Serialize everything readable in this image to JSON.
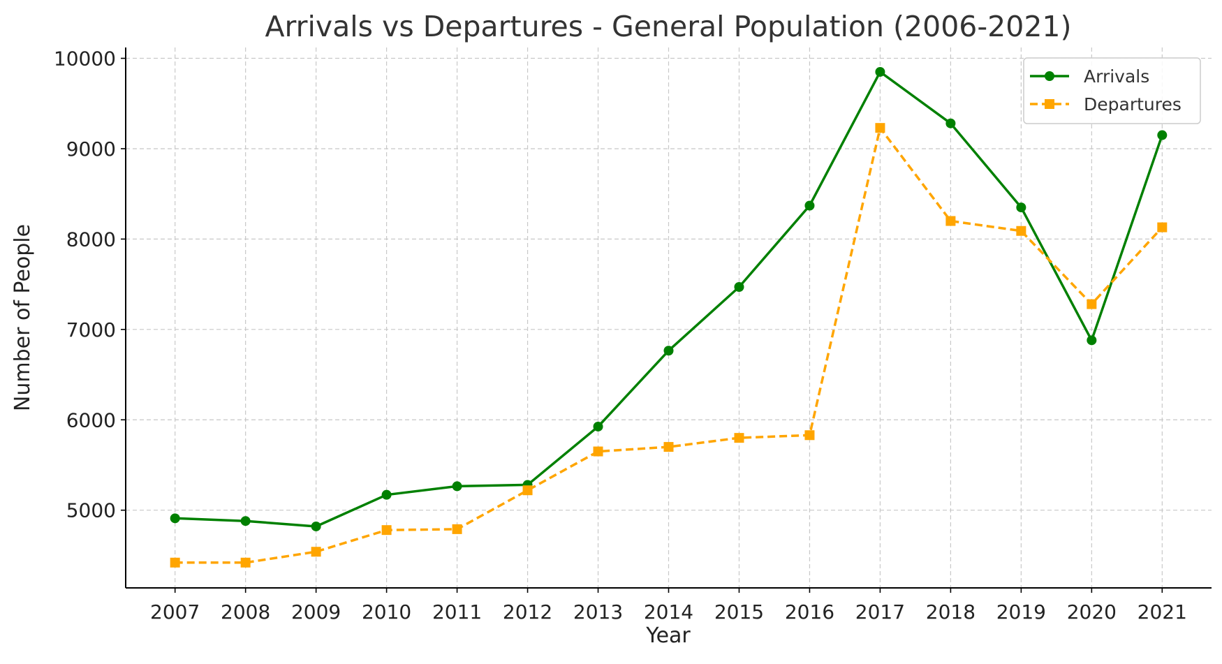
{
  "chart_data": {
    "type": "line",
    "title": "Arrivals vs Departures - General Population (2006-2021)",
    "xlabel": "Year",
    "ylabel": "Number of People",
    "x": [
      2007,
      2008,
      2009,
      2010,
      2011,
      2012,
      2013,
      2014,
      2015,
      2016,
      2017,
      2018,
      2019,
      2020,
      2021
    ],
    "x_tick_labels": [
      "2007",
      "2008",
      "2009",
      "2010",
      "2011",
      "2012",
      "2013",
      "2014",
      "2015",
      "2016",
      "2017",
      "2018",
      "2019",
      "2020",
      "2021"
    ],
    "y_ticks": [
      5000,
      6000,
      7000,
      8000,
      9000,
      10000
    ],
    "y_tick_labels": [
      "5000",
      "6000",
      "7000",
      "8000",
      "9000",
      "10000"
    ],
    "xlim": [
      2006.3,
      2021.7
    ],
    "ylim": [
      4140,
      10120
    ],
    "grid": true,
    "legend_position": "top-right",
    "series": [
      {
        "name": "Arrivals",
        "color": "#008000",
        "marker": "circle",
        "line_style": "solid",
        "values": [
          4910,
          4880,
          4820,
          5170,
          5265,
          5280,
          5925,
          6765,
          7470,
          8370,
          9850,
          9280,
          8350,
          6880,
          9150
        ]
      },
      {
        "name": "Departures",
        "color": "#FFA500",
        "marker": "square",
        "line_style": "dashed",
        "values": [
          4420,
          4420,
          4540,
          4780,
          4790,
          5220,
          5650,
          5700,
          5800,
          5830,
          9230,
          8200,
          8090,
          7280,
          8130
        ]
      }
    ]
  }
}
